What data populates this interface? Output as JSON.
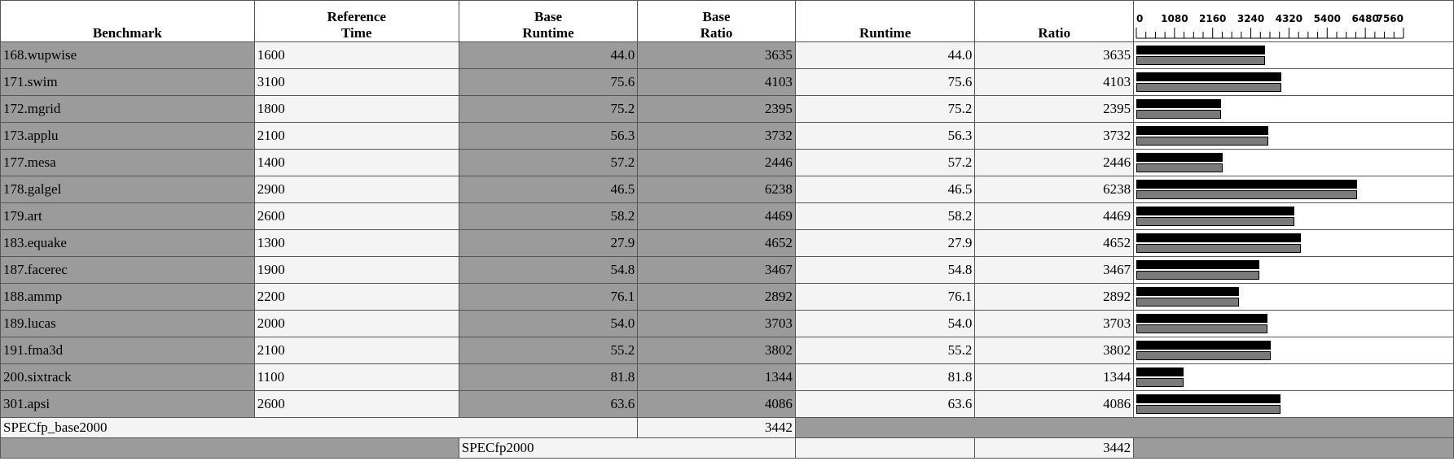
{
  "headers": {
    "benchmark": "Benchmark",
    "ref_time_1": "Reference",
    "ref_time_2": "Time",
    "base_runtime_1": "Base",
    "base_runtime_2": "Runtime",
    "base_ratio_1": "Base",
    "base_ratio_2": "Ratio",
    "runtime": "Runtime",
    "ratio": "Ratio"
  },
  "scale_ticks": [
    "0",
    "1080",
    "2160",
    "3240",
    "4320",
    "5400",
    "6480",
    "7560"
  ],
  "chart_data": {
    "type": "bar",
    "orientation": "horizontal",
    "xlim": [
      0,
      7560
    ],
    "categories": [
      "168.wupwise",
      "171.swim",
      "172.mgrid",
      "173.applu",
      "177.mesa",
      "178.galgel",
      "179.art",
      "183.equake",
      "187.facerec",
      "188.ammp",
      "189.lucas",
      "191.fma3d",
      "200.sixtrack",
      "301.apsi"
    ],
    "series": [
      {
        "values": [
          3635,
          4103,
          2395,
          3732,
          2446,
          6238,
          4469,
          4652,
          3467,
          2892,
          3703,
          3802,
          1344,
          4086
        ],
        "color": "#000000"
      },
      {
        "values": [
          3635,
          4103,
          2395,
          3732,
          2446,
          6238,
          4469,
          4652,
          3467,
          2892,
          3703,
          3802,
          1344,
          4086
        ],
        "color": "#7a7a7a"
      }
    ]
  },
  "rows": [
    {
      "name": "168.wupwise",
      "ref": "1600",
      "base_rt": "44.0",
      "base_ratio": "3635",
      "rt": "44.0",
      "ratio": "3635"
    },
    {
      "name": "171.swim",
      "ref": "3100",
      "base_rt": "75.6",
      "base_ratio": "4103",
      "rt": "75.6",
      "ratio": "4103"
    },
    {
      "name": "172.mgrid",
      "ref": "1800",
      "base_rt": "75.2",
      "base_ratio": "2395",
      "rt": "75.2",
      "ratio": "2395"
    },
    {
      "name": "173.applu",
      "ref": "2100",
      "base_rt": "56.3",
      "base_ratio": "3732",
      "rt": "56.3",
      "ratio": "3732"
    },
    {
      "name": "177.mesa",
      "ref": "1400",
      "base_rt": "57.2",
      "base_ratio": "2446",
      "rt": "57.2",
      "ratio": "2446"
    },
    {
      "name": "178.galgel",
      "ref": "2900",
      "base_rt": "46.5",
      "base_ratio": "6238",
      "rt": "46.5",
      "ratio": "6238"
    },
    {
      "name": "179.art",
      "ref": "2600",
      "base_rt": "58.2",
      "base_ratio": "4469",
      "rt": "58.2",
      "ratio": "4469"
    },
    {
      "name": "183.equake",
      "ref": "1300",
      "base_rt": "27.9",
      "base_ratio": "4652",
      "rt": "27.9",
      "ratio": "4652"
    },
    {
      "name": "187.facerec",
      "ref": "1900",
      "base_rt": "54.8",
      "base_ratio": "3467",
      "rt": "54.8",
      "ratio": "3467"
    },
    {
      "name": "188.ammp",
      "ref": "2200",
      "base_rt": "76.1",
      "base_ratio": "2892",
      "rt": "76.1",
      "ratio": "2892"
    },
    {
      "name": "189.lucas",
      "ref": "2000",
      "base_rt": "54.0",
      "base_ratio": "3703",
      "rt": "54.0",
      "ratio": "3703"
    },
    {
      "name": "191.fma3d",
      "ref": "2100",
      "base_rt": "55.2",
      "base_ratio": "3802",
      "rt": "55.2",
      "ratio": "3802"
    },
    {
      "name": "200.sixtrack",
      "ref": "1100",
      "base_rt": "81.8",
      "base_ratio": "1344",
      "rt": "81.8",
      "ratio": "1344"
    },
    {
      "name": "301.apsi",
      "ref": "2600",
      "base_rt": "63.6",
      "base_ratio": "4086",
      "rt": "63.6",
      "ratio": "4086"
    }
  ],
  "summary": {
    "base_label": "SPECfp_base2000",
    "base_value": "3442",
    "peak_label": "SPECfp2000",
    "peak_value": "3442"
  }
}
